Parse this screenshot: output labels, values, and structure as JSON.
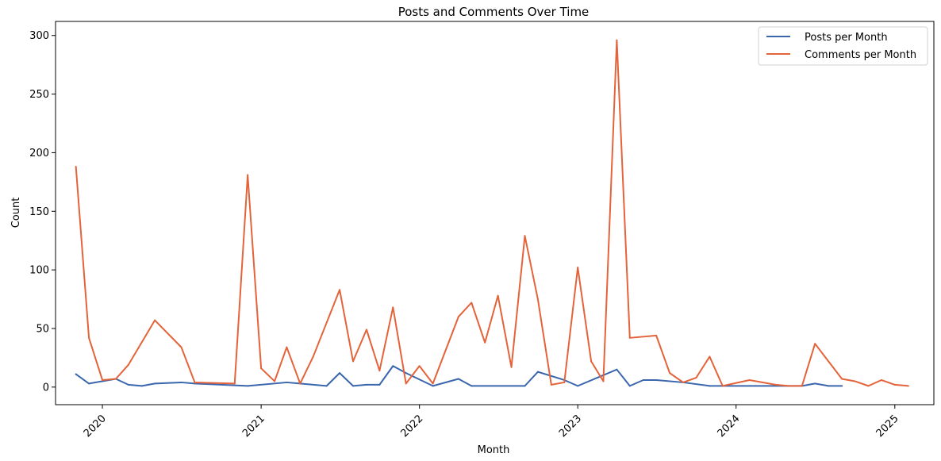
{
  "chart_data": {
    "type": "line",
    "title": "Posts and Comments Over Time",
    "xlabel": "Month",
    "ylabel": "Count",
    "ylim": [
      -15,
      312
    ],
    "xlim": [
      "2019-09-15",
      "2025-04-01"
    ],
    "grid": false,
    "legend_position": "top-right",
    "x_ticks": [
      "2020-01-01",
      "2021-01-01",
      "2022-01-01",
      "2023-01-01",
      "2024-01-01",
      "2025-01-01"
    ],
    "x_tick_labels": [
      "2020",
      "2021",
      "2022",
      "2023",
      "2024",
      "2025"
    ],
    "y_ticks": [
      0,
      50,
      100,
      150,
      200,
      250,
      300
    ],
    "y_tick_labels": [
      "0",
      "50",
      "100",
      "150",
      "200",
      "250",
      "300"
    ],
    "series": [
      {
        "name": "Posts per Month",
        "color": "#3a66ad",
        "points": [
          [
            "2019-11-01",
            11
          ],
          [
            "2019-12-01",
            3
          ],
          [
            "2020-01-01",
            5
          ],
          [
            "2020-02-01",
            7
          ],
          [
            "2020-03-01",
            2
          ],
          [
            "2020-04-01",
            1
          ],
          [
            "2020-05-01",
            3
          ],
          [
            "2020-07-01",
            4
          ],
          [
            "2020-08-01",
            3
          ],
          [
            "2020-12-01",
            1
          ],
          [
            "2021-03-01",
            4
          ],
          [
            "2021-04-01",
            3
          ],
          [
            "2021-06-01",
            1
          ],
          [
            "2021-07-01",
            12
          ],
          [
            "2021-08-01",
            1
          ],
          [
            "2021-09-01",
            2
          ],
          [
            "2021-10-01",
            2
          ],
          [
            "2021-11-01",
            18
          ],
          [
            "2021-12-01",
            12
          ],
          [
            "2022-02-01",
            1
          ],
          [
            "2022-04-01",
            7
          ],
          [
            "2022-05-01",
            1
          ],
          [
            "2022-09-01",
            1
          ],
          [
            "2022-10-01",
            13
          ],
          [
            "2022-12-01",
            6
          ],
          [
            "2023-01-01",
            1
          ],
          [
            "2023-04-01",
            15
          ],
          [
            "2023-05-01",
            1
          ],
          [
            "2023-06-01",
            6
          ],
          [
            "2023-07-01",
            6
          ],
          [
            "2023-09-01",
            4
          ],
          [
            "2023-11-01",
            1
          ],
          [
            "2024-01-01",
            1
          ],
          [
            "2024-06-01",
            1
          ],
          [
            "2024-07-01",
            3
          ],
          [
            "2024-08-01",
            1
          ],
          [
            "2024-09-01",
            1
          ]
        ]
      },
      {
        "name": "Comments per Month",
        "color": "#e4633a",
        "points": [
          [
            "2019-11-01",
            188
          ],
          [
            "2019-12-01",
            42
          ],
          [
            "2020-01-01",
            6
          ],
          [
            "2020-02-01",
            7
          ],
          [
            "2020-03-01",
            19
          ],
          [
            "2020-05-01",
            57
          ],
          [
            "2020-07-01",
            34
          ],
          [
            "2020-08-01",
            4
          ],
          [
            "2020-11-01",
            3
          ],
          [
            "2020-12-01",
            181
          ],
          [
            "2021-01-01",
            16
          ],
          [
            "2021-02-01",
            5
          ],
          [
            "2021-03-01",
            34
          ],
          [
            "2021-04-01",
            3
          ],
          [
            "2021-05-01",
            26
          ],
          [
            "2021-07-01",
            83
          ],
          [
            "2021-08-01",
            22
          ],
          [
            "2021-09-01",
            49
          ],
          [
            "2021-10-01",
            14
          ],
          [
            "2021-11-01",
            68
          ],
          [
            "2021-12-01",
            3
          ],
          [
            "2022-01-01",
            18
          ],
          [
            "2022-02-01",
            3
          ],
          [
            "2022-04-01",
            60
          ],
          [
            "2022-05-01",
            72
          ],
          [
            "2022-06-01",
            38
          ],
          [
            "2022-07-01",
            78
          ],
          [
            "2022-08-01",
            17
          ],
          [
            "2022-09-01",
            129
          ],
          [
            "2022-10-01",
            75
          ],
          [
            "2022-11-01",
            2
          ],
          [
            "2022-12-01",
            4
          ],
          [
            "2023-01-01",
            102
          ],
          [
            "2023-02-01",
            22
          ],
          [
            "2023-03-01",
            5
          ],
          [
            "2023-04-01",
            296
          ],
          [
            "2023-05-01",
            42
          ],
          [
            "2023-07-01",
            44
          ],
          [
            "2023-08-01",
            12
          ],
          [
            "2023-09-01",
            4
          ],
          [
            "2023-10-01",
            8
          ],
          [
            "2023-11-01",
            26
          ],
          [
            "2023-12-01",
            1
          ],
          [
            "2024-02-01",
            6
          ],
          [
            "2024-04-01",
            2
          ],
          [
            "2024-05-01",
            1
          ],
          [
            "2024-06-01",
            1
          ],
          [
            "2024-07-01",
            37
          ],
          [
            "2024-08-01",
            22
          ],
          [
            "2024-09-01",
            7
          ],
          [
            "2024-10-01",
            5
          ],
          [
            "2024-11-01",
            1
          ],
          [
            "2024-12-01",
            6
          ],
          [
            "2025-01-01",
            2
          ],
          [
            "2025-02-01",
            1
          ]
        ]
      }
    ]
  }
}
